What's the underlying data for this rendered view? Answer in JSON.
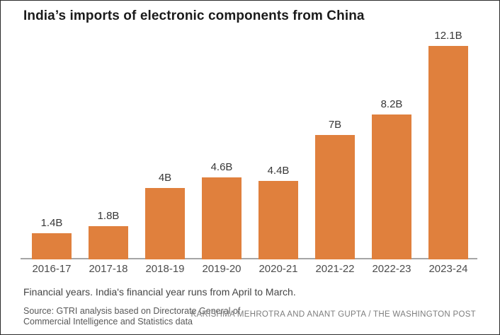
{
  "title": "India’s imports of electronic components from China",
  "chart_data": {
    "type": "bar",
    "categories": [
      "2016-17",
      "2017-18",
      "2018-19",
      "2019-20",
      "2020-21",
      "2021-22",
      "2022-23",
      "2023-24"
    ],
    "values": [
      1.4,
      1.8,
      4,
      4.6,
      4.4,
      7,
      8.2,
      12.1
    ],
    "value_labels": [
      "1.4B",
      "1.8B",
      "4B",
      "4.6B",
      "4.4B",
      "7B",
      "8.2B",
      "12.1B"
    ],
    "title": "India’s imports of electronic components from China",
    "xlabel": "Financial years",
    "ylabel": "",
    "ylim": [
      0,
      12.1
    ],
    "unit": "billion USD",
    "grid": false,
    "legend": "none",
    "bar_color": "#e0803d",
    "axis_color": "#a6a6a6"
  },
  "footnote": "Financial years. India's financial year runs from April to March.",
  "source": {
    "line1": "Source: GTRI analysis based on Directorate General of",
    "line2": "Commercial Intelligence and Statistics data"
  },
  "credit": "KARISHMA MEHROTRA AND ANANT GUPTA / THE WASHINGTON POST"
}
